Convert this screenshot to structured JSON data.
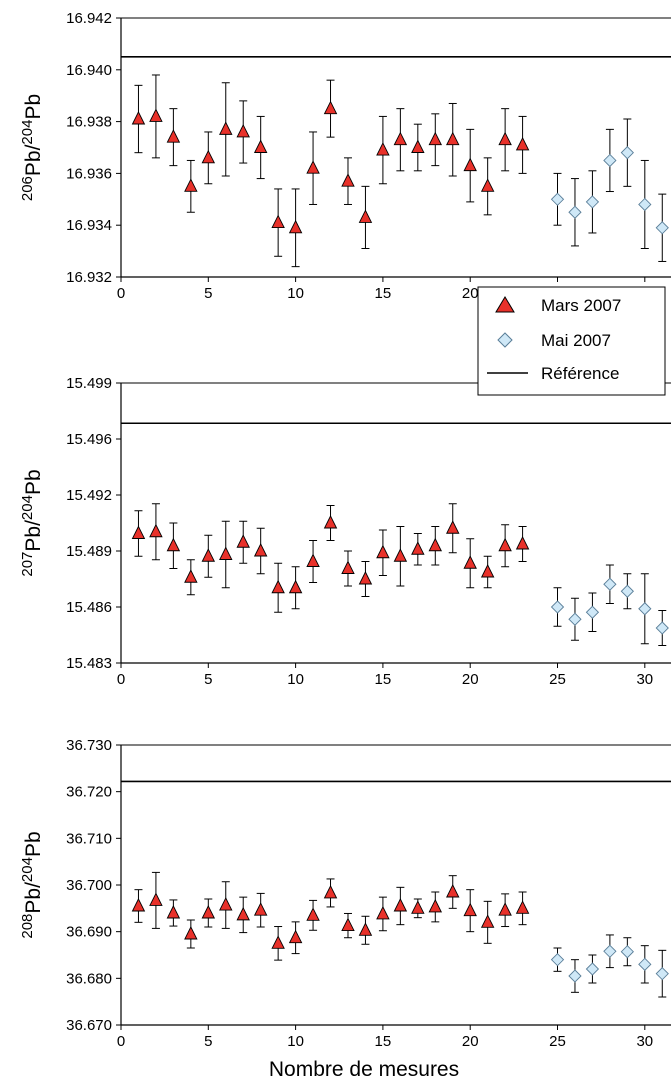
{
  "chart_data": {
    "type": "scatter",
    "xlabel": "Nombre de mesures",
    "legend": {
      "placement": "right, between top and middle panels",
      "entries": [
        {
          "key": "mars",
          "label": "Mars 2007",
          "marker": "triangle",
          "color": "#e8312a"
        },
        {
          "key": "mai",
          "label": "Mai 2007",
          "marker": "diamond",
          "color": "#cfe8f7"
        },
        {
          "key": "ref",
          "label": "Référence",
          "marker": "line",
          "color": "#000000"
        }
      ]
    },
    "x_ticks": [
      0,
      5,
      10,
      15,
      20,
      25,
      30
    ],
    "panels": [
      {
        "ylabel_main": "Pb/",
        "ylabel_sup1": "206",
        "ylabel_sup2": "204",
        "ylabel_end": "Pb",
        "ylim": [
          16.932,
          16.942
        ],
        "xlim": [
          0,
          31.5
        ],
        "y_ticks": [
          "16.932",
          "16.934",
          "16.936",
          "16.938",
          "16.940",
          "16.942"
        ],
        "reference": 16.9405,
        "mars": {
          "x": [
            1,
            2,
            3,
            4,
            5,
            6,
            7,
            8,
            9,
            10,
            11,
            12,
            13,
            14,
            15,
            16,
            17,
            18,
            19,
            20,
            21,
            22,
            23
          ],
          "y": [
            16.9381,
            16.9382,
            16.9374,
            16.9355,
            16.9366,
            16.9377,
            16.9376,
            16.937,
            16.9341,
            16.9339,
            16.9362,
            16.9385,
            16.9357,
            16.9343,
            16.9369,
            16.9373,
            16.937,
            16.9373,
            16.9373,
            16.9363,
            16.9355,
            16.9373,
            16.9371
          ],
          "err": [
            0.0013,
            0.0016,
            0.0011,
            0.001,
            0.001,
            0.0018,
            0.0012,
            0.0012,
            0.0013,
            0.0015,
            0.0014,
            0.0011,
            0.0009,
            0.0012,
            0.0013,
            0.0012,
            0.0009,
            0.001,
            0.0014,
            0.0014,
            0.0011,
            0.0012,
            0.0011
          ]
        },
        "mai": {
          "x": [
            25,
            26,
            27,
            28,
            29,
            30,
            31
          ],
          "y": [
            16.935,
            16.9345,
            16.9349,
            16.9365,
            16.9368,
            16.9348,
            16.9339
          ],
          "err": [
            0.001,
            0.0013,
            0.0012,
            0.0012,
            0.0013,
            0.0017,
            0.0013
          ]
        }
      },
      {
        "ylabel_main": "Pb/",
        "ylabel_sup1": "207",
        "ylabel_sup2": "204",
        "ylabel_end": "Pb",
        "ylim": [
          15.483,
          15.499
        ],
        "xlim": [
          0,
          31.5
        ],
        "y_ticks": [
          "15.483",
          "15.486",
          "15.489",
          "15.492",
          "15.496",
          "15.499"
        ],
        "reference": 15.4967,
        "mars": {
          "x": [
            1,
            2,
            3,
            4,
            5,
            6,
            7,
            8,
            9,
            10,
            11,
            12,
            13,
            14,
            15,
            16,
            17,
            18,
            19,
            20,
            21,
            22,
            23
          ],
          "y": [
            15.4904,
            15.4905,
            15.4897,
            15.4879,
            15.4891,
            15.4892,
            15.4899,
            15.4894,
            15.4873,
            15.4873,
            15.4888,
            15.491,
            15.4884,
            15.4878,
            15.4893,
            15.4891,
            15.4895,
            15.4897,
            15.4907,
            15.4887,
            15.4882,
            15.4897,
            15.4898
          ],
          "err": [
            0.0013,
            0.0016,
            0.0013,
            0.001,
            0.0012,
            0.0019,
            0.0012,
            0.0013,
            0.0014,
            0.0012,
            0.0012,
            0.001,
            0.001,
            0.001,
            0.0013,
            0.0017,
            0.0009,
            0.0011,
            0.0014,
            0.0014,
            0.0009,
            0.0012,
            0.001
          ]
        },
        "mai": {
          "x": [
            25,
            26,
            27,
            28,
            29,
            30,
            31
          ],
          "y": [
            15.4862,
            15.4855,
            15.4859,
            15.4875,
            15.4871,
            15.4861,
            15.485
          ],
          "err": [
            0.0011,
            0.0012,
            0.0011,
            0.0011,
            0.001,
            0.002,
            0.001
          ]
        }
      },
      {
        "ylabel_main": "Pb/",
        "ylabel_sup1": "208",
        "ylabel_sup2": "204",
        "ylabel_end": "Pb",
        "ylim": [
          36.67,
          36.73
        ],
        "xlim": [
          0,
          31.5
        ],
        "y_ticks": [
          "36.670",
          "36.680",
          "36.690",
          "36.700",
          "36.710",
          "36.720",
          "36.730"
        ],
        "reference": 36.7222,
        "mars": {
          "x": [
            1,
            2,
            3,
            4,
            5,
            6,
            7,
            8,
            9,
            10,
            11,
            12,
            13,
            14,
            15,
            16,
            17,
            18,
            19,
            20,
            21,
            22,
            23
          ],
          "y": [
            36.6955,
            36.6967,
            36.694,
            36.6895,
            36.694,
            36.6957,
            36.6936,
            36.6946,
            36.6875,
            36.6887,
            36.6935,
            36.6983,
            36.6913,
            36.6903,
            36.6938,
            36.6955,
            36.695,
            36.6953,
            36.6985,
            36.6945,
            36.692,
            36.6946,
            36.695
          ],
          "err": [
            0.0035,
            0.006,
            0.0028,
            0.003,
            0.003,
            0.005,
            0.0038,
            0.0036,
            0.0036,
            0.0034,
            0.0032,
            0.003,
            0.0026,
            0.003,
            0.0036,
            0.004,
            0.002,
            0.0032,
            0.0035,
            0.0045,
            0.0045,
            0.0035,
            0.0035
          ]
        },
        "mai": {
          "x": [
            25,
            26,
            27,
            28,
            29,
            30,
            31
          ],
          "y": [
            36.684,
            36.6805,
            36.682,
            36.6858,
            36.6857,
            36.683,
            36.681
          ],
          "err": [
            0.0025,
            0.0035,
            0.003,
            0.0035,
            0.003,
            0.004,
            0.005
          ]
        }
      }
    ]
  }
}
